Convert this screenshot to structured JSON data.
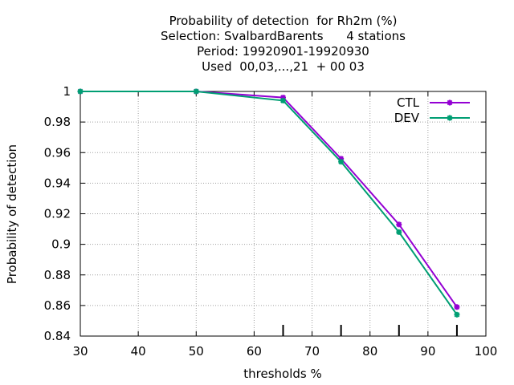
{
  "chart_data": {
    "type": "line",
    "title_lines": [
      "Probability of detection  for Rh2m (%)",
      "Selection: SvalbardBarents      4 stations",
      "Period: 19920901-19920930",
      "Used  00,03,...,21  + 00 03"
    ],
    "xlabel": "thresholds %",
    "ylabel": "Probability of detection",
    "xlim": [
      30,
      100
    ],
    "ylim": [
      0.84,
      1.0
    ],
    "xticks": [
      30,
      40,
      50,
      60,
      70,
      80,
      90,
      100
    ],
    "yticks": [
      0.84,
      0.86,
      0.88,
      0.9,
      0.92,
      0.94,
      0.96,
      0.98,
      1
    ],
    "ytick_labels": [
      "0.84",
      "0.86",
      "0.88",
      "0.9",
      "0.92",
      "0.94",
      "0.96",
      "0.98",
      "1"
    ],
    "grid": true,
    "legend_position": "top-right",
    "series": [
      {
        "name": "CTL",
        "color": "#9400d3",
        "x": [
          30,
          50,
          65,
          75,
          85,
          95
        ],
        "y": [
          1.0,
          1.0,
          0.996,
          0.956,
          0.913,
          0.859
        ]
      },
      {
        "name": "DEV",
        "color": "#009e73",
        "x": [
          30,
          50,
          65,
          75,
          85,
          95
        ],
        "y": [
          1.0,
          1.0,
          0.994,
          0.954,
          0.908,
          0.854
        ]
      }
    ]
  }
}
